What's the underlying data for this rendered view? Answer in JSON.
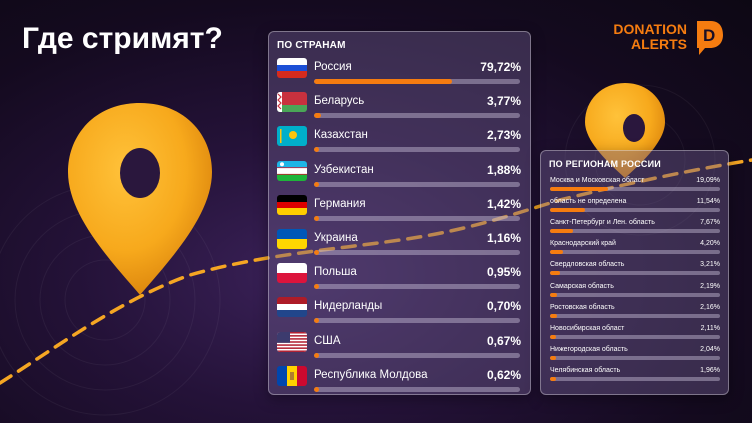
{
  "page": {
    "title": "Где стримят?"
  },
  "logo": {
    "line1": "DONATION",
    "line2": "ALERTS",
    "mark": "D"
  },
  "colors": {
    "accent": "#f57c10",
    "pin": "#f7a91c",
    "dashes": "#f5a623"
  },
  "chart_data": [
    {
      "type": "bar",
      "title": "ПО СТРАНАМ",
      "unit": "%",
      "categories": [
        "Россия",
        "Беларусь",
        "Казахстан",
        "Узбекистан",
        "Германия",
        "Украина",
        "Польша",
        "Нидерланды",
        "США",
        "Республика Молдова"
      ],
      "values": [
        79.72,
        3.77,
        2.73,
        1.88,
        1.42,
        1.16,
        0.95,
        0.7,
        0.67,
        0.62
      ],
      "labels": [
        "79,72%",
        "3,77%",
        "2,73%",
        "1,88%",
        "1,42%",
        "1,16%",
        "0,95%",
        "0,70%",
        "0,67%",
        "0,62%"
      ],
      "flags": [
        "ru",
        "by",
        "kz",
        "uz",
        "de",
        "ua",
        "pl",
        "nl",
        "us",
        "md"
      ]
    },
    {
      "type": "bar",
      "title": "ПО РЕГИОНАМ РОССИИ",
      "unit": "%",
      "categories": [
        "Москва и Московская област",
        "область не определена",
        "Санкт-Петербург и Лен. область",
        "Краснодарский край",
        "Свердловская область",
        "Самарская область",
        "Ростовская область",
        "Новосибирская област",
        "Нижегородская область",
        "Челябинская область"
      ],
      "values": [
        19.09,
        11.54,
        7.67,
        4.2,
        3.21,
        2.19,
        2.16,
        2.11,
        2.04,
        1.96
      ],
      "labels": [
        "19,09%",
        "11,54%",
        "7,67%",
        "4,20%",
        "3,21%",
        "2,19%",
        "2,16%",
        "2,11%",
        "2,04%",
        "1,96%"
      ]
    }
  ]
}
